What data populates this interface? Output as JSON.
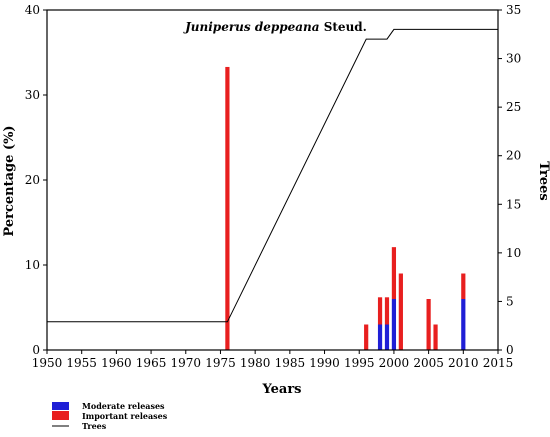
{
  "chart_data": {
    "type": "bar",
    "title_species": "Juniperus deppeana",
    "title_author": " Steud.",
    "xlabel": "Years",
    "ylabel": "Percentage (%)",
    "y2label": "Trees",
    "xlim": [
      1950,
      2015
    ],
    "ylim": [
      0,
      40
    ],
    "y2lim": [
      0,
      35
    ],
    "xticks": [
      "1950",
      "1955",
      "1960",
      "1965",
      "1970",
      "1975",
      "1980",
      "1985",
      "1990",
      "1995",
      "2000",
      "2005",
      "2010",
      "2015"
    ],
    "yticks": [
      "0",
      "10",
      "20",
      "30",
      "40"
    ],
    "y2ticks": [
      "0",
      "5",
      "10",
      "15",
      "20",
      "25",
      "30",
      "35"
    ],
    "series": [
      {
        "name": "Moderate releases",
        "color": "#1f1fd6",
        "x": [
          1976,
          1996,
          1998,
          1999,
          2000,
          2001,
          2005,
          2006,
          2010
        ],
        "values": [
          0,
          0,
          3,
          3,
          6,
          0,
          0,
          0,
          6
        ]
      },
      {
        "name": "Important releases",
        "color": "#e81f1f",
        "x": [
          1976,
          1996,
          1998,
          1999,
          2000,
          2001,
          2005,
          2006,
          2010
        ],
        "values": [
          33.3,
          3,
          3.2,
          3.2,
          6.1,
          9,
          6,
          3,
          3
        ]
      }
    ],
    "line": {
      "name": "Trees",
      "color": "#000000",
      "x": [
        1950,
        1976,
        1996,
        1999,
        2000,
        2015
      ],
      "y": [
        2.9,
        2.9,
        32,
        32,
        33,
        33
      ]
    },
    "legend_position": "bottom-left"
  }
}
